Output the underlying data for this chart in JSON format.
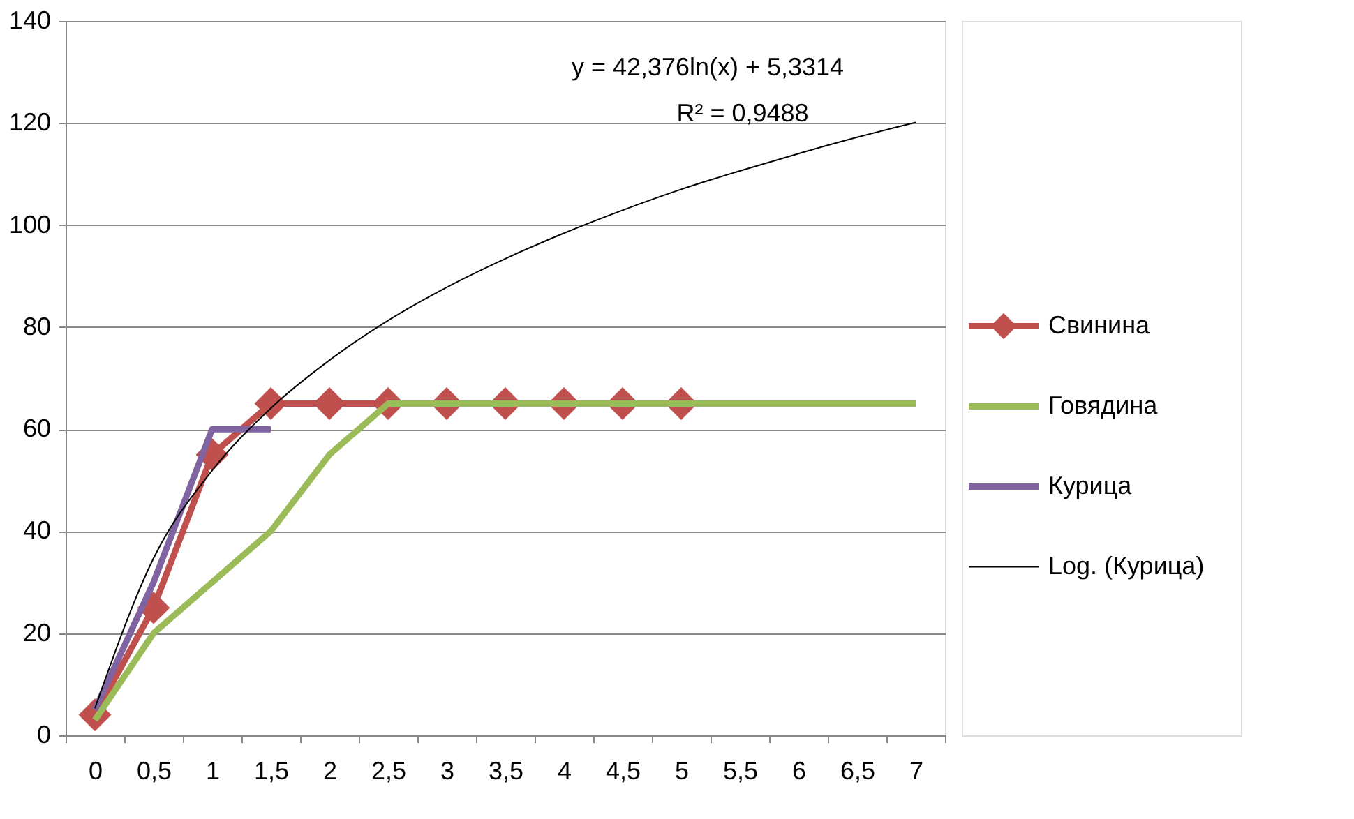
{
  "chart_data": {
    "type": "line",
    "categories": [
      "0",
      "0,5",
      "1",
      "1,5",
      "2",
      "2,5",
      "3",
      "3,5",
      "4",
      "4,5",
      "5",
      "5,5",
      "6",
      "6,5",
      "7"
    ],
    "series": [
      {
        "name": "Свинина",
        "color": "#c0504d",
        "marker": "diamond",
        "values": [
          4,
          25,
          55,
          65,
          65,
          65,
          65,
          65,
          65,
          65,
          65,
          null,
          null,
          null,
          null
        ]
      },
      {
        "name": "Говядина",
        "color": "#9bbb59",
        "values": [
          3,
          20,
          30,
          40,
          55,
          65,
          65,
          65,
          65,
          65,
          65,
          65,
          65,
          65,
          65
        ]
      },
      {
        "name": "Курица",
        "color": "#8064a2",
        "values": [
          5,
          30,
          60,
          60,
          null,
          null,
          null,
          null,
          null,
          null,
          null,
          null,
          null,
          null,
          null
        ]
      },
      {
        "name": "Log. (Курица)",
        "color": "#000000",
        "type": "line",
        "values": [
          5.3,
          34.7,
          51.9,
          64.1,
          73.5,
          81.3,
          87.8,
          93.4,
          98.4,
          102.9,
          107.0,
          110.6,
          114.0,
          117.2,
          120.1
        ]
      }
    ],
    "ylim": [
      0,
      140
    ],
    "yticks": [
      0,
      20,
      40,
      60,
      80,
      100,
      120,
      140
    ],
    "grid": "y",
    "legend": "right",
    "annotations": [
      "y = 42,376ln(x) + 5,3314",
      "R² = 0,9488"
    ]
  }
}
